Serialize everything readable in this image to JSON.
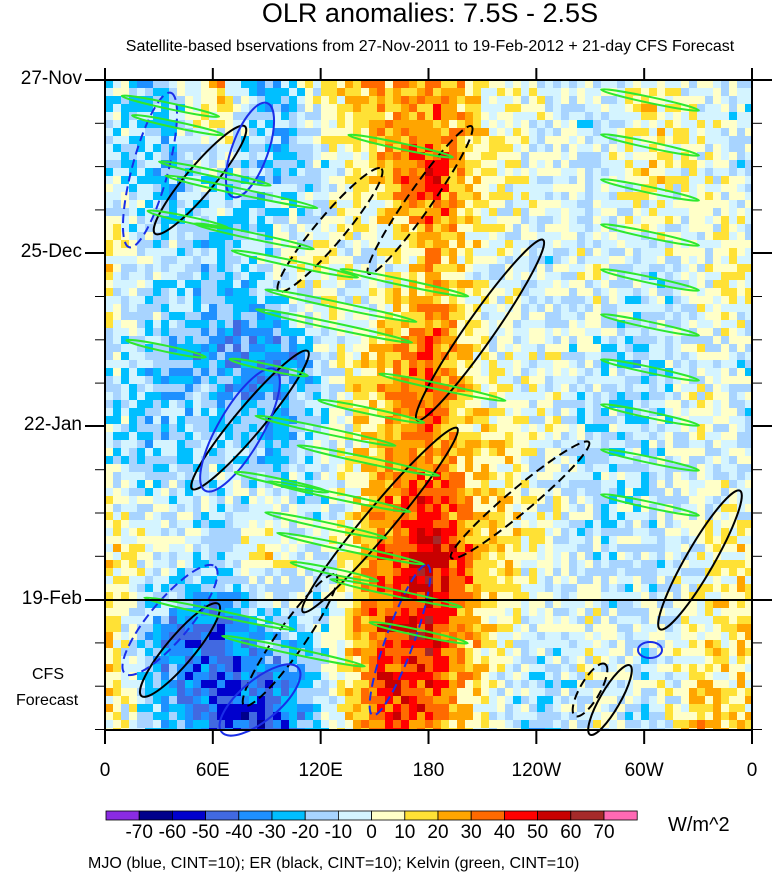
{
  "chart_data": {
    "type": "heatmap",
    "title": "OLR anomalies: 7.5S - 2.5S",
    "subtitle": "Satellite-based bservations from 27-Nov-2011 to 19-Feb-2012 + 21-day CFS Forecast",
    "x_tick_labels": [
      "0",
      "60E",
      "120E",
      "180",
      "120W",
      "60W",
      "0"
    ],
    "x_tick_values_deg_east": [
      0,
      60,
      120,
      180,
      240,
      300,
      360
    ],
    "y_tick_labels": [
      "27-Nov",
      "25-Dec",
      "22-Jan",
      "19-Feb"
    ],
    "forecast_label": [
      "CFS",
      "Forecast"
    ],
    "units": "W/m^2",
    "colorbar_levels": [
      -70,
      -60,
      -50,
      -40,
      -30,
      -20,
      -10,
      0,
      10,
      20,
      30,
      40,
      50,
      60,
      70
    ],
    "colorbar_colors": [
      "#8a2be2",
      "#00008b",
      "#0000cd",
      "#4169e1",
      "#1e90ff",
      "#00bfff",
      "#a8d4ff",
      "#d4f4ff",
      "#ffffc8",
      "#ffe135",
      "#ffa500",
      "#ff6a00",
      "#ff0000",
      "#c80000",
      "#a52a2a",
      "#ff69b4"
    ],
    "contour_note": "MJO (blue, CINT=10); ER (black, CINT=10); Kelvin (green, CINT=10)",
    "approx_grid": {
      "lon_deg_east": [
        0,
        30,
        60,
        90,
        120,
        150,
        180,
        210,
        240,
        270,
        300,
        330,
        360
      ],
      "time_rows": [
        "late-Nov",
        "mid-Dec",
        "early-Jan",
        "mid-Jan",
        "early-Feb",
        "mid-Feb",
        "late-Feb (fcst)",
        "early-Mar (fcst)"
      ],
      "values": [
        [
          -10,
          -20,
          20,
          -30,
          10,
          20,
          30,
          5,
          0,
          -10,
          10,
          0,
          -10
        ],
        [
          -10,
          -20,
          -10,
          -20,
          -10,
          20,
          40,
          10,
          0,
          -10,
          10,
          0,
          -10
        ],
        [
          10,
          -10,
          -20,
          -10,
          10,
          -10,
          20,
          0,
          -10,
          0,
          -10,
          0,
          10
        ],
        [
          -10,
          -20,
          -30,
          -40,
          -10,
          20,
          40,
          0,
          0,
          -10,
          -20,
          0,
          -10
        ],
        [
          -10,
          -20,
          -10,
          -20,
          -10,
          20,
          30,
          10,
          0,
          -10,
          -10,
          0,
          -10
        ],
        [
          10,
          0,
          -10,
          10,
          -10,
          30,
          50,
          20,
          0,
          -10,
          -10,
          0,
          10
        ],
        [
          10,
          -30,
          -50,
          -20,
          -10,
          40,
          50,
          10,
          -10,
          0,
          -10,
          10,
          10
        ],
        [
          10,
          -20,
          -40,
          -60,
          -10,
          40,
          30,
          0,
          -20,
          0,
          -10,
          20,
          10
        ]
      ]
    }
  }
}
